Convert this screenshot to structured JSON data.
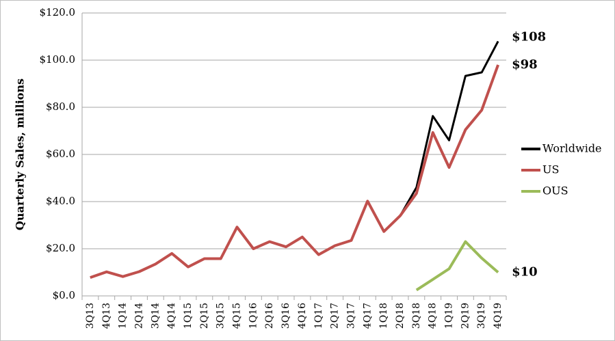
{
  "chart_data": {
    "type": "line",
    "y_label": "Quarterly Sales, millions",
    "categories": [
      "3Q13",
      "4Q13",
      "1Q14",
      "2Q14",
      "3Q14",
      "4Q14",
      "1Q15",
      "2Q15",
      "3Q15",
      "4Q15",
      "1Q16",
      "2Q16",
      "3Q16",
      "4Q16",
      "1Q17",
      "2Q17",
      "3Q17",
      "4Q17",
      "1Q18",
      "2Q18",
      "3Q18",
      "4Q18",
      "1Q19",
      "2Q19",
      "3Q19",
      "4Q19"
    ],
    "series": [
      {
        "name": "Worldwide",
        "color": "#000000",
        "values": [
          7.8,
          10.2,
          8.2,
          10.3,
          13.5,
          18,
          12.3,
          15.8,
          15.8,
          29.2,
          20,
          23,
          20.8,
          25,
          17.5,
          21.3,
          23.5,
          40.2,
          27.3,
          34,
          46,
          76.3,
          66,
          93.3,
          94.8,
          108
        ],
        "value_labels": [
          null,
          null,
          null,
          null,
          null,
          null,
          null,
          null,
          null,
          null,
          null,
          null,
          null,
          null,
          null,
          null,
          null,
          null,
          null,
          null,
          null,
          null,
          null,
          null,
          null,
          "$108"
        ]
      },
      {
        "name": "US",
        "color": "#c0504d",
        "values": [
          7.8,
          10.2,
          8.2,
          10.3,
          13.5,
          18,
          12.3,
          15.8,
          15.8,
          29.2,
          20,
          23,
          20.8,
          25,
          17.5,
          21.3,
          23.5,
          40.2,
          27.3,
          34,
          43.5,
          69.3,
          54.5,
          70.5,
          78.8,
          98
        ],
        "value_labels": [
          null,
          null,
          null,
          null,
          null,
          null,
          null,
          null,
          null,
          null,
          null,
          null,
          null,
          null,
          null,
          null,
          null,
          null,
          null,
          null,
          null,
          null,
          null,
          null,
          null,
          "$98"
        ]
      },
      {
        "name": "OUS",
        "color": "#9bbb59",
        "values": [
          null,
          null,
          null,
          null,
          null,
          null,
          null,
          null,
          null,
          null,
          null,
          null,
          null,
          null,
          null,
          null,
          null,
          null,
          null,
          null,
          2.5,
          7,
          11.5,
          23,
          16,
          10
        ],
        "value_labels": [
          null,
          null,
          null,
          null,
          null,
          null,
          null,
          null,
          null,
          null,
          null,
          null,
          null,
          null,
          null,
          null,
          null,
          null,
          null,
          null,
          null,
          null,
          null,
          null,
          null,
          "$10"
        ]
      }
    ],
    "ylim": [
      0,
      120
    ],
    "yticks": [
      {
        "value": 0,
        "label": "$0.0"
      },
      {
        "value": 20,
        "label": "$20.0"
      },
      {
        "value": 40,
        "label": "$40.0"
      },
      {
        "value": 60,
        "label": "$60.0"
      },
      {
        "value": 80,
        "label": "$80.0"
      },
      {
        "value": 100,
        "label": "$100.0"
      },
      {
        "value": 120,
        "label": "$120.0"
      }
    ],
    "grid": true,
    "legend": "right"
  }
}
